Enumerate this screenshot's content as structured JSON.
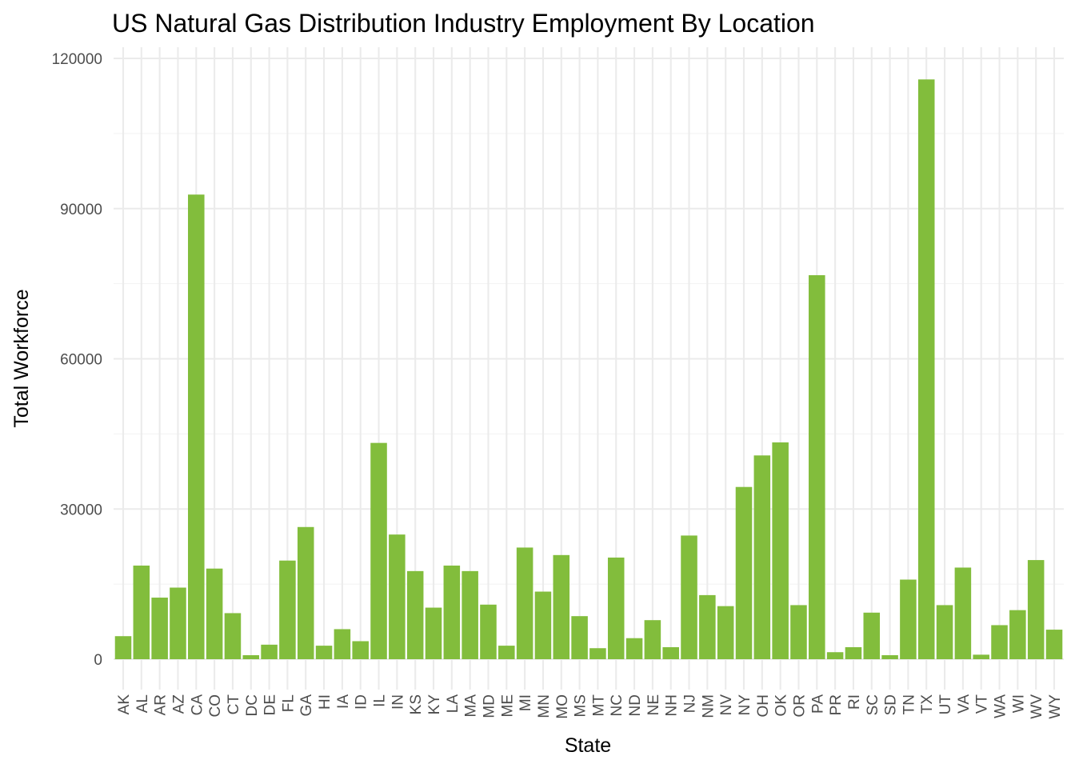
{
  "chart_data": {
    "type": "bar",
    "title": "US Natural Gas Distribution Industry Employment By Location",
    "xlabel": "State",
    "ylabel": "Total Workforce",
    "ylim": [
      0,
      120000
    ],
    "yticks": [
      0,
      30000,
      60000,
      90000,
      120000
    ],
    "grid": true,
    "bar_color": "#82bd3c",
    "categories": [
      "AK",
      "AL",
      "AR",
      "AZ",
      "CA",
      "CO",
      "CT",
      "DC",
      "DE",
      "FL",
      "GA",
      "HI",
      "IA",
      "ID",
      "IL",
      "IN",
      "KS",
      "KY",
      "LA",
      "MA",
      "MD",
      "ME",
      "MI",
      "MN",
      "MO",
      "MS",
      "MT",
      "NC",
      "ND",
      "NE",
      "NH",
      "NJ",
      "NM",
      "NV",
      "NY",
      "OH",
      "OK",
      "OR",
      "PA",
      "PR",
      "RI",
      "SC",
      "SD",
      "TN",
      "TX",
      "UT",
      "VA",
      "VT",
      "WA",
      "WI",
      "WV",
      "WY"
    ],
    "values": [
      4600,
      18700,
      12300,
      14300,
      92800,
      18100,
      9200,
      800,
      2900,
      19700,
      26400,
      2700,
      6000,
      3600,
      43200,
      24900,
      17600,
      10300,
      18700,
      17600,
      10900,
      2700,
      22300,
      13500,
      20800,
      8600,
      2200,
      20300,
      4200,
      7800,
      2400,
      24700,
      12800,
      10600,
      34400,
      40700,
      43300,
      10800,
      76700,
      1400,
      2400,
      9300,
      800,
      15900,
      115800,
      10800,
      18300,
      900,
      6800,
      9800,
      19800,
      5900
    ]
  }
}
